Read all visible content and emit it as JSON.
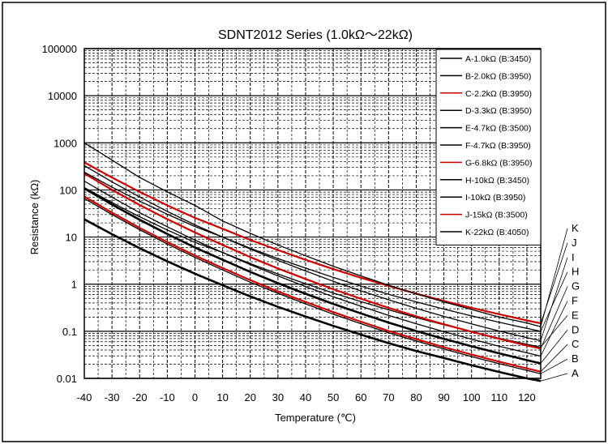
{
  "chart_data": {
    "type": "line",
    "title": "SDNT2012 Series (1.0kΩ～22kΩ)",
    "xlabel": "Temperature (℃)",
    "ylabel": "Resistance (kΩ)",
    "x_scale": "linear",
    "y_scale": "log",
    "xlim": [
      -40,
      125
    ],
    "ylim": [
      0.01,
      100000
    ],
    "x_ticks": [
      -40,
      -30,
      -20,
      -10,
      0,
      10,
      20,
      30,
      40,
      50,
      60,
      70,
      80,
      90,
      100,
      110,
      120
    ],
    "y_ticks": [
      0.01,
      0.1,
      1,
      10,
      100,
      1000,
      10000,
      100000
    ],
    "y_tick_labels": [
      "0.01",
      "0.1",
      "1",
      "10",
      "100",
      "1000",
      "10000",
      "100000"
    ],
    "grid": true,
    "legend_position": "top-right",
    "x": [
      -40,
      -30,
      -20,
      -10,
      0,
      10,
      20,
      30,
      40,
      50,
      60,
      70,
      80,
      90,
      100,
      110,
      120,
      125
    ],
    "series": [
      {
        "name": "A-1.0kΩ (B:3450)",
        "end_label": "A",
        "color": "#000000",
        "width": 2.6,
        "values": [
          23.8,
          11.5,
          5.8,
          3.05,
          1.67,
          0.945,
          0.55,
          0.33,
          0.205,
          0.13,
          0.085,
          0.056,
          0.038,
          0.027,
          0.019,
          0.0137,
          0.01,
          0.0088
        ]
      },
      {
        "name": "B-2.0kΩ (B:3950)",
        "end_label": "B",
        "color": "#000000",
        "width": 1.3,
        "values": [
          66,
          30,
          14.3,
          7.1,
          3.7,
          2.0,
          1.1,
          0.64,
          0.38,
          0.23,
          0.145,
          0.093,
          0.062,
          0.042,
          0.029,
          0.0205,
          0.0148,
          0.0126
        ]
      },
      {
        "name": "C-2.2kΩ (B:3950)",
        "end_label": "C",
        "color": "#cc0000",
        "width": 2.2,
        "values": [
          73,
          33,
          15.7,
          7.8,
          4.05,
          2.2,
          1.22,
          0.7,
          0.42,
          0.255,
          0.16,
          0.102,
          0.068,
          0.046,
          0.032,
          0.0226,
          0.0163,
          0.0139
        ]
      },
      {
        "name": "D-3.3kΩ (B:3950)",
        "end_label": "D",
        "color": "#000000",
        "width": 2.6,
        "values": [
          108,
          49,
          23.3,
          11.6,
          6.0,
          3.3,
          1.82,
          1.05,
          0.625,
          0.38,
          0.24,
          0.153,
          0.101,
          0.069,
          0.048,
          0.034,
          0.0244,
          0.0208
        ]
      },
      {
        "name": "E-4.7kΩ (B:3500)",
        "end_label": "E",
        "color": "#000000",
        "width": 1.3,
        "values": [
          112,
          54,
          27,
          14.1,
          7.7,
          4.7,
          2.72,
          1.65,
          1.02,
          0.65,
          0.425,
          0.285,
          0.195,
          0.137,
          0.098,
          0.071,
          0.053,
          0.046
        ]
      },
      {
        "name": "F-4.7kΩ (B:3950)",
        "end_label": "F",
        "color": "#000000",
        "width": 1.3,
        "values": [
          154,
          70,
          33,
          16.5,
          8.6,
          4.7,
          2.6,
          1.5,
          0.89,
          0.54,
          0.34,
          0.218,
          0.144,
          0.098,
          0.068,
          0.048,
          0.035,
          0.0296
        ]
      },
      {
        "name": "G-6.8kΩ (B:3950)",
        "end_label": "G",
        "color": "#cc0000",
        "width": 2.2,
        "values": [
          223,
          101,
          48,
          24,
          12.5,
          6.8,
          3.75,
          2.16,
          1.29,
          0.78,
          0.49,
          0.315,
          0.208,
          0.141,
          0.098,
          0.069,
          0.05,
          0.043
        ]
      },
      {
        "name": "H-10kΩ (B:3450)",
        "end_label": "H",
        "color": "#000000",
        "width": 1.3,
        "values": [
          238,
          115,
          58,
          30.5,
          16.7,
          10,
          5.8,
          3.5,
          2.19,
          1.39,
          0.91,
          0.61,
          0.42,
          0.295,
          0.212,
          0.155,
          0.115,
          0.1
        ]
      },
      {
        "name": "I-10kΩ (B:3950)",
        "end_label": "I",
        "color": "#000000",
        "width": 1.3,
        "values": [
          328,
          149,
          71,
          35,
          18.2,
          10,
          5.55,
          3.2,
          1.9,
          1.15,
          0.72,
          0.465,
          0.306,
          0.207,
          0.143,
          0.101,
          0.073,
          0.063
        ]
      },
      {
        "name": "J-15kΩ (B:3500)",
        "end_label": "J",
        "color": "#cc0000",
        "width": 2.2,
        "values": [
          385,
          184,
          91,
          47,
          25.5,
          15,
          8.7,
          5.3,
          3.28,
          2.09,
          1.37,
          0.92,
          0.63,
          0.44,
          0.315,
          0.23,
          0.17,
          0.147
        ]
      },
      {
        "name": "K-22kΩ (B:4050)",
        "end_label": "K",
        "color": "#000000",
        "width": 1.3,
        "values": [
          1000,
          430,
          185,
          91,
          47,
          22,
          12,
          6.8,
          4.0,
          2.4,
          1.5,
          0.95,
          0.62,
          0.42,
          0.29,
          0.2,
          0.15,
          0.125
        ]
      }
    ]
  }
}
